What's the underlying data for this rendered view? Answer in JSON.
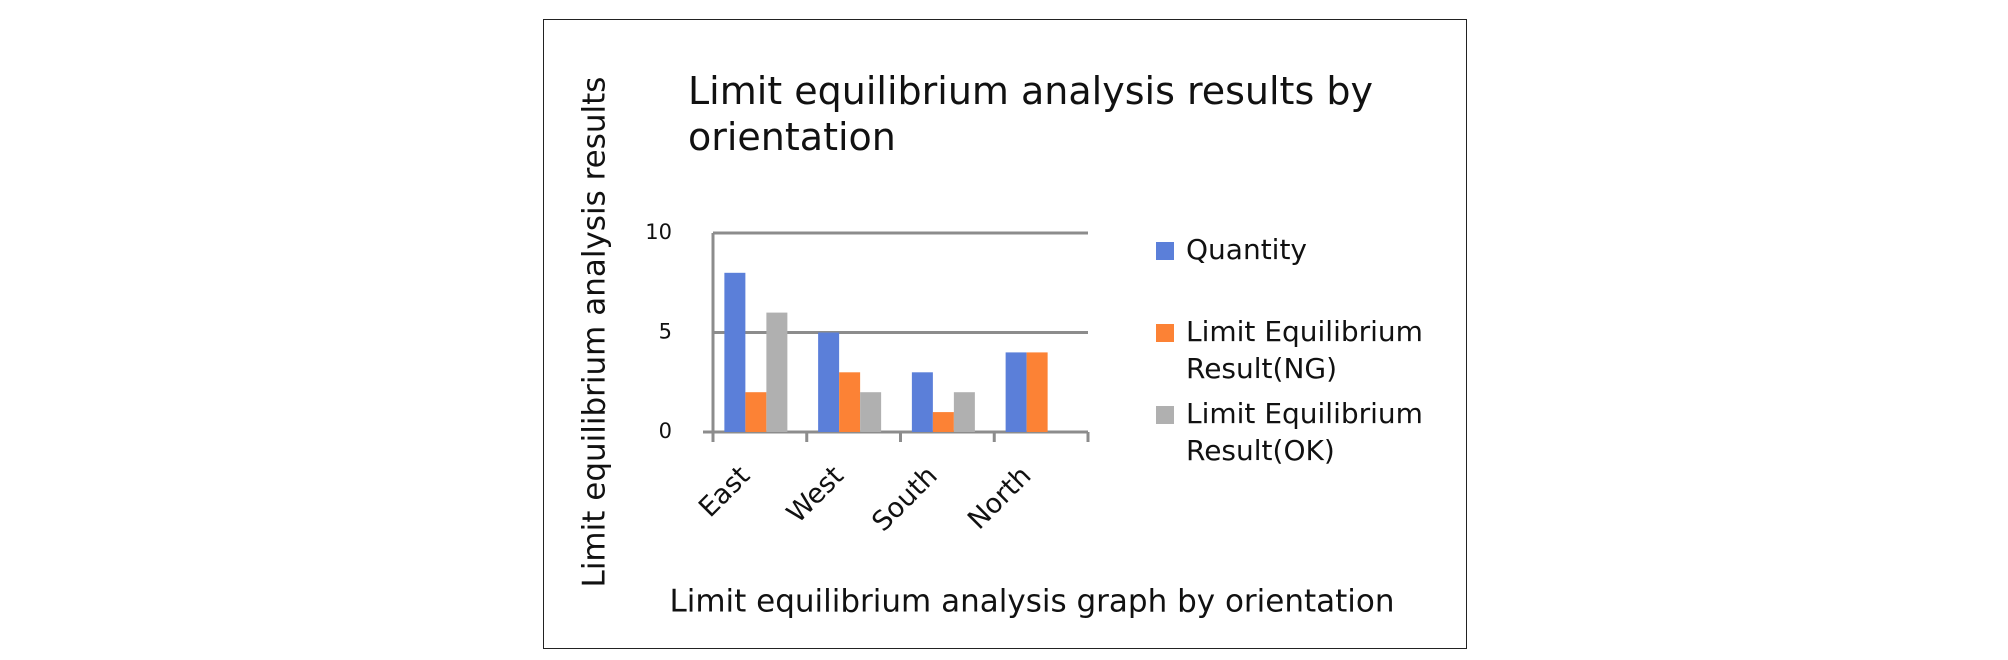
{
  "chart_data": {
    "type": "bar",
    "title": "Limit equilibrium analysis results by orientation",
    "x_label": "Limit equilibrium analysis graph by orientation",
    "y_label": "Limit equilibrium analysis results",
    "categories": [
      "East",
      "West",
      "South",
      "North"
    ],
    "series": [
      {
        "name": "Quantity",
        "color": "#5b7fd9",
        "values": [
          8,
          5,
          3,
          4
        ]
      },
      {
        "name": "Limit Equilibrium Result(NG)",
        "color": "#fc8235",
        "values": [
          2,
          3,
          1,
          4
        ]
      },
      {
        "name": "Limit Equilibrium Result(OK)",
        "color": "#b0b0b0",
        "values": [
          6,
          2,
          2,
          0
        ]
      }
    ],
    "ylim": [
      0,
      10
    ],
    "yticks": [
      0,
      5,
      10
    ],
    "grid": true,
    "legend": "right"
  }
}
